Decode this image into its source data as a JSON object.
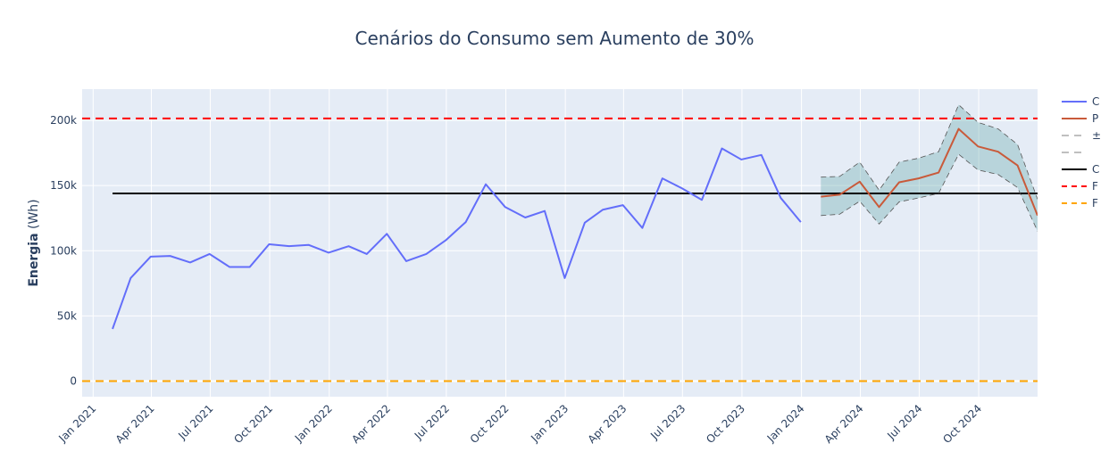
{
  "chart_data": {
    "type": "line",
    "title": "Cenários do Consumo sem Aumento de 30%",
    "ylabel_bold": "Energia",
    "ylabel_unit": " (Wh)",
    "xlabel": "",
    "x_range": [
      "2020-12-15",
      "2024-12-31"
    ],
    "ylim": [
      -12000,
      224000
    ],
    "y_ticks": [
      {
        "value": 0,
        "label": "0"
      },
      {
        "value": 50000,
        "label": "50k"
      },
      {
        "value": 100000,
        "label": "100k"
      },
      {
        "value": 150000,
        "label": "150k"
      },
      {
        "value": 200000,
        "label": "200k"
      }
    ],
    "x_ticks": [
      {
        "date": "2021-01-01",
        "label": "Jan 2021"
      },
      {
        "date": "2021-04-01",
        "label": "Apr 2021"
      },
      {
        "date": "2021-07-01",
        "label": "Jul 2021"
      },
      {
        "date": "2021-10-01",
        "label": "Oct 2021"
      },
      {
        "date": "2022-01-01",
        "label": "Jan 2022"
      },
      {
        "date": "2022-04-01",
        "label": "Apr 2022"
      },
      {
        "date": "2022-07-01",
        "label": "Jul 2022"
      },
      {
        "date": "2022-10-01",
        "label": "Oct 2022"
      },
      {
        "date": "2023-01-01",
        "label": "Jan 2023"
      },
      {
        "date": "2023-04-01",
        "label": "Apr 2023"
      },
      {
        "date": "2023-07-01",
        "label": "Jul 2023"
      },
      {
        "date": "2023-10-01",
        "label": "Oct 2023"
      },
      {
        "date": "2024-01-01",
        "label": "Jan 2024"
      },
      {
        "date": "2024-04-01",
        "label": "Apr 2024"
      },
      {
        "date": "2024-07-01",
        "label": "Jul 2024"
      },
      {
        "date": "2024-10-01",
        "label": "Oct 2024"
      }
    ],
    "series": [
      {
        "legend": "C",
        "color": "#636efa",
        "style": "solid",
        "x": [
          "2021-01-31",
          "2021-02-28",
          "2021-03-31",
          "2021-04-30",
          "2021-05-31",
          "2021-06-30",
          "2021-07-31",
          "2021-08-31",
          "2021-09-30",
          "2021-10-31",
          "2021-11-30",
          "2021-12-31",
          "2022-01-31",
          "2022-02-28",
          "2022-03-31",
          "2022-04-30",
          "2022-05-31",
          "2022-06-30",
          "2022-07-31",
          "2022-08-31",
          "2022-09-30",
          "2022-10-31",
          "2022-11-30",
          "2022-12-31",
          "2023-01-31",
          "2023-02-28",
          "2023-03-31",
          "2023-04-30",
          "2023-05-31",
          "2023-06-30",
          "2023-07-31",
          "2023-08-31",
          "2023-09-30",
          "2023-10-31",
          "2023-11-30",
          "2023-12-31"
        ],
        "y": [
          40000,
          79000,
          95500,
          96000,
          91000,
          97500,
          87500,
          87500,
          105000,
          103500,
          104500,
          98500,
          103500,
          97500,
          113000,
          92000,
          97500,
          108000,
          122000,
          151000,
          133500,
          125500,
          130500,
          79000,
          121500,
          131500,
          135000,
          117500,
          155500,
          148000,
          139000,
          178500,
          170000,
          173500,
          140500,
          122000
        ]
      },
      {
        "legend": "P",
        "color": "#c95a3a",
        "style": "solid",
        "x": [
          "2024-01-31",
          "2024-02-29",
          "2024-03-31",
          "2024-04-30",
          "2024-05-31",
          "2024-06-30",
          "2024-07-31",
          "2024-08-31",
          "2024-09-30",
          "2024-10-31",
          "2024-11-30",
          "2024-12-31"
        ],
        "y": [
          141500,
          143000,
          153000,
          133500,
          152500,
          155500,
          160000,
          193500,
          180000,
          176000,
          165500,
          127000
        ]
      },
      {
        "legend": "±",
        "color": "#555555",
        "style": "dash-thin",
        "x": [
          "2024-01-31",
          "2024-02-29",
          "2024-03-31",
          "2024-04-30",
          "2024-05-31",
          "2024-06-30",
          "2024-07-31",
          "2024-08-31",
          "2024-09-30",
          "2024-10-31",
          "2024-11-30",
          "2024-12-31"
        ],
        "y": [
          156500,
          157000,
          168000,
          146500,
          168000,
          171000,
          176000,
          212000,
          198500,
          193500,
          181500,
          139500
        ]
      },
      {
        "legend": "",
        "color": "#555555",
        "style": "dash-thin",
        "x": [
          "2024-01-31",
          "2024-02-29",
          "2024-03-31",
          "2024-04-30",
          "2024-05-31",
          "2024-06-30",
          "2024-07-31",
          "2024-08-31",
          "2024-09-30",
          "2024-10-31",
          "2024-11-30",
          "2024-12-31"
        ],
        "y": [
          127000,
          128000,
          138000,
          120500,
          137500,
          140500,
          144000,
          174000,
          162000,
          158500,
          148500,
          115000
        ]
      }
    ],
    "band": {
      "color": "rgba(100,170,170,0.35)",
      "between": [
        2,
        3
      ]
    },
    "hlines": [
      {
        "legend": "C",
        "y": 144000,
        "color": "#000000",
        "style": "solid",
        "x_start": "2021-01-31"
      },
      {
        "legend": "F",
        "y": 201500,
        "color": "#ff0000",
        "style": "dash"
      },
      {
        "legend": "F",
        "y": 0,
        "color": "#ffa500",
        "style": "dash"
      }
    ],
    "grid": true,
    "legend_position": "right"
  }
}
